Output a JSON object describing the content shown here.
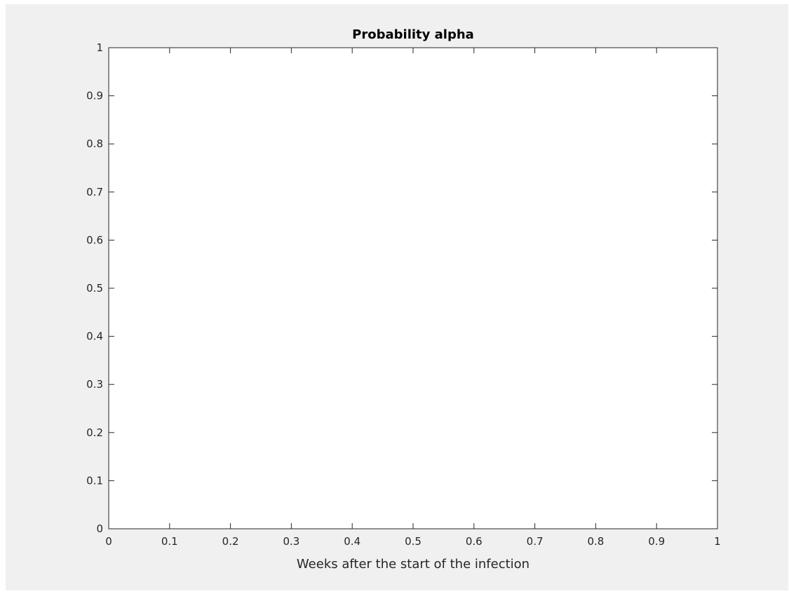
{
  "chart_data": {
    "type": "line",
    "title": "Probability alpha",
    "xlabel": "Weeks after the start of the infection",
    "ylabel": "",
    "xlim": [
      0,
      1
    ],
    "ylim": [
      0,
      1
    ],
    "xticks": [
      0,
      0.1,
      0.2,
      0.3,
      0.4,
      0.5,
      0.6,
      0.7,
      0.8,
      0.9,
      1
    ],
    "yticks": [
      0,
      0.1,
      0.2,
      0.3,
      0.4,
      0.5,
      0.6,
      0.7,
      0.8,
      0.9,
      1
    ],
    "xtick_labels": [
      "0",
      "0.1",
      "0.2",
      "0.3",
      "0.4",
      "0.5",
      "0.6",
      "0.7",
      "0.8",
      "0.9",
      "1"
    ],
    "ytick_labels": [
      "0",
      "0.1",
      "0.2",
      "0.3",
      "0.4",
      "0.5",
      "0.6",
      "0.7",
      "0.8",
      "0.9",
      "1"
    ],
    "grid": false,
    "series": [],
    "colors": {
      "figure_background": "#f0f0f0",
      "axes_background": "#ffffff",
      "axes_color": "#262626"
    }
  }
}
